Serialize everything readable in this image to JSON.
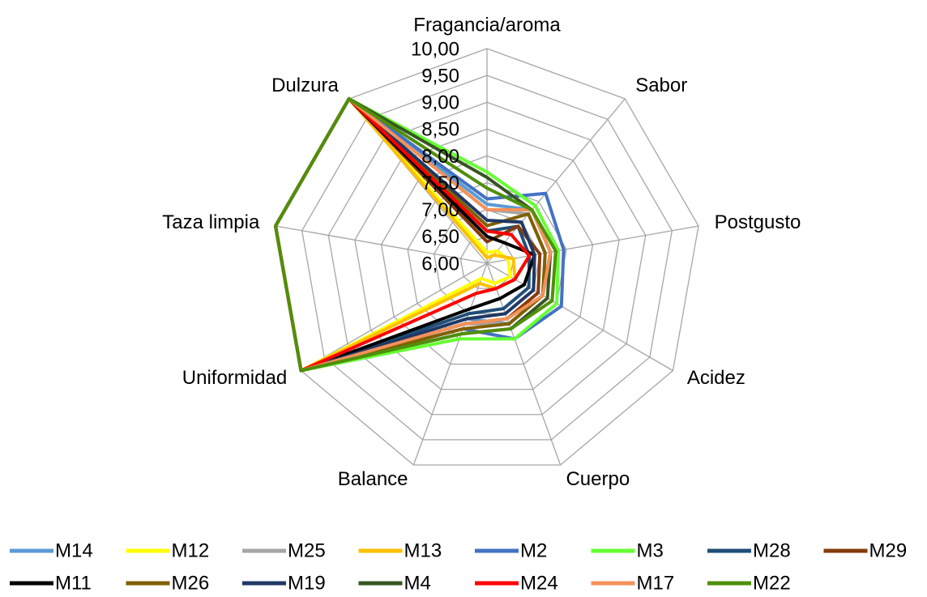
{
  "chart_data": {
    "type": "radar",
    "categories": [
      "Fragancia/aroma",
      "Sabor",
      "Postgusto",
      "Acidez",
      "Cuerpo",
      "Balance",
      "Uniformidad",
      "Taza limpia",
      "Dulzura"
    ],
    "ylim": [
      6,
      10
    ],
    "yticks": [
      {
        "value": 6,
        "label": "6,00"
      },
      {
        "value": 6.5,
        "label": "6,50"
      },
      {
        "value": 7,
        "label": "7,00"
      },
      {
        "value": 7.5,
        "label": "7,50"
      },
      {
        "value": 8,
        "label": "8,00"
      },
      {
        "value": 8.5,
        "label": "8,50"
      },
      {
        "value": 9,
        "label": "9,00"
      },
      {
        "value": 9.5,
        "label": "9,50"
      },
      {
        "value": 10,
        "label": "10,00"
      }
    ],
    "grid": true,
    "legend": "bottom",
    "series": [
      {
        "name": "M14",
        "color": "#5b9bd5",
        "values": [
          7.1,
          7.3,
          7.2,
          7.2,
          7.2,
          7.1,
          10,
          10,
          10
        ]
      },
      {
        "name": "M12",
        "color": "#ffff00",
        "values": [
          6.2,
          6.3,
          6.4,
          6.5,
          6.4,
          6.3,
          10,
          10,
          10
        ]
      },
      {
        "name": "M25",
        "color": "#a5a5a5",
        "values": [
          7.0,
          7.2,
          7.1,
          7.2,
          7.2,
          7.2,
          10,
          10,
          10
        ]
      },
      {
        "name": "M13",
        "color": "#ffc000",
        "values": [
          6.1,
          6.2,
          6.5,
          6.6,
          6.5,
          6.4,
          10,
          10,
          10
        ]
      },
      {
        "name": "M2",
        "color": "#4472c4",
        "values": [
          7.2,
          7.7,
          7.45,
          7.6,
          7.5,
          7.3,
          10,
          10,
          10
        ]
      },
      {
        "name": "M3",
        "color": "#66ff33",
        "values": [
          7.7,
          7.4,
          7.35,
          7.5,
          7.5,
          7.5,
          10,
          10,
          10
        ]
      },
      {
        "name": "M28",
        "color": "#1f4e79",
        "values": [
          6.6,
          6.9,
          6.8,
          6.9,
          6.9,
          7.0,
          10,
          10,
          10
        ]
      },
      {
        "name": "M29",
        "color": "#843c0c",
        "values": [
          6.4,
          6.9,
          7.0,
          7.1,
          7.1,
          7.2,
          10,
          10,
          10
        ]
      },
      {
        "name": "M11",
        "color": "#000000",
        "values": [
          6.5,
          6.5,
          6.9,
          6.8,
          6.7,
          6.9,
          10,
          10,
          10
        ]
      },
      {
        "name": "M26",
        "color": "#7f6000",
        "values": [
          6.7,
          7.2,
          7.1,
          7.2,
          7.2,
          7.3,
          10,
          10,
          10
        ]
      },
      {
        "name": "M19",
        "color": "#203864",
        "values": [
          6.8,
          7.0,
          6.9,
          7.0,
          7.0,
          7.1,
          10,
          10,
          10
        ]
      },
      {
        "name": "M4",
        "color": "#375623",
        "values": [
          7.6,
          7.3,
          7.2,
          7.3,
          7.3,
          7.4,
          10,
          10,
          10
        ]
      },
      {
        "name": "M24",
        "color": "#ff0000",
        "values": [
          6.6,
          6.7,
          6.8,
          6.6,
          6.5,
          6.6,
          10,
          10,
          10
        ]
      },
      {
        "name": "M17",
        "color": "#f4915a",
        "values": [
          7.0,
          7.3,
          7.2,
          7.2,
          7.1,
          7.2,
          10,
          10,
          10
        ]
      },
      {
        "name": "M22",
        "color": "#4f8f0a",
        "values": [
          7.4,
          7.3,
          7.3,
          7.4,
          7.3,
          7.4,
          10,
          10,
          10
        ]
      }
    ]
  }
}
